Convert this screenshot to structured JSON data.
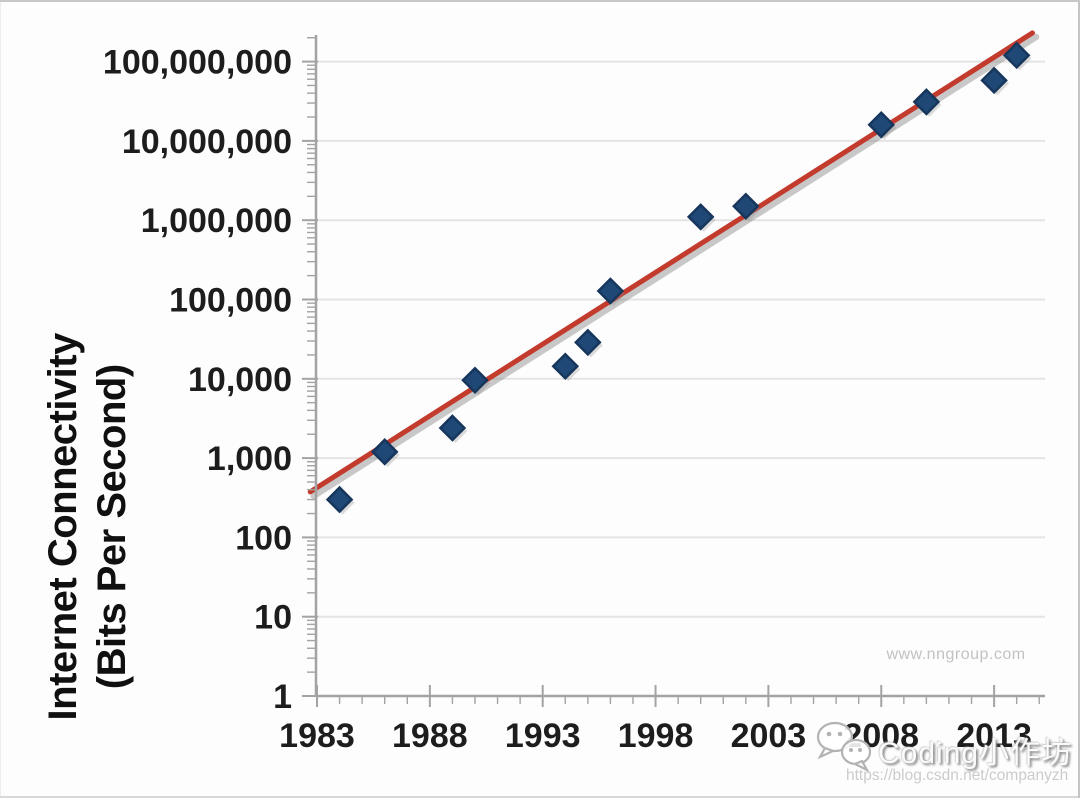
{
  "watermarks": {
    "nngroup": "www.nngroup.com",
    "csdn_name": "Coding小作坊",
    "csdn_url": "https://blog.csdn.net/companyzh",
    "wechat_icon": "wechat-chat-bubbles-icon"
  },
  "colors": {
    "marker_fill": "#1f4876",
    "marker_stroke": "#17365c",
    "trend_line": "#c23b2d",
    "trend_shadow": "rgba(120,120,120,0.40)",
    "grid": "#e4e4e4",
    "axis": "#a3a3a3",
    "tick_label": "#1d1d1d",
    "nngroup_gray": "#c2c2c2",
    "csdn_gray": "#cbcbcb"
  },
  "chart_data": {
    "type": "scatter",
    "title": "",
    "ylabel_line1": "Internet Connectivity",
    "ylabel_line2": "(Bits Per Second)",
    "xlabel": "",
    "y_scale": "log10",
    "grid": "horizontal-only",
    "legend": "none",
    "x_range": [
      1982.7,
      2015.3
    ],
    "y_range": [
      1,
      230000000
    ],
    "x_ticks": [
      1983,
      1988,
      1993,
      1998,
      2003,
      2008,
      2013
    ],
    "x_minor_tick_step_years": 1,
    "y_tick_labels": [
      "1",
      "10",
      "100",
      "1,000",
      "10,000",
      "100,000",
      "1,000,000",
      "10,000,000",
      "100,000,000"
    ],
    "y_tick_values": [
      1,
      10,
      100,
      1000,
      10000,
      100000,
      1000000,
      10000000,
      100000000
    ],
    "marker": {
      "shape": "diamond",
      "fill": "#1f4876",
      "stroke": "#17365c"
    },
    "points": [
      {
        "year": 1984,
        "bps": 300
      },
      {
        "year": 1986,
        "bps": 1200
      },
      {
        "year": 1989,
        "bps": 2400
      },
      {
        "year": 1990,
        "bps": 9600
      },
      {
        "year": 1994,
        "bps": 14400
      },
      {
        "year": 1995,
        "bps": 28800
      },
      {
        "year": 1996,
        "bps": 128000
      },
      {
        "year": 2000,
        "bps": 1100000
      },
      {
        "year": 2002,
        "bps": 1500000
      },
      {
        "year": 2008,
        "bps": 16000000
      },
      {
        "year": 2010,
        "bps": 31000000
      },
      {
        "year": 2013,
        "bps": 58000000
      },
      {
        "year": 2014,
        "bps": 120000000
      }
    ],
    "trend_line": {
      "start_year": 1982.7,
      "start_bps": 375,
      "end_year": 2014.7,
      "end_bps": 230000000,
      "color": "#c23b2d",
      "annual_growth_implied": "~50% per year"
    }
  }
}
